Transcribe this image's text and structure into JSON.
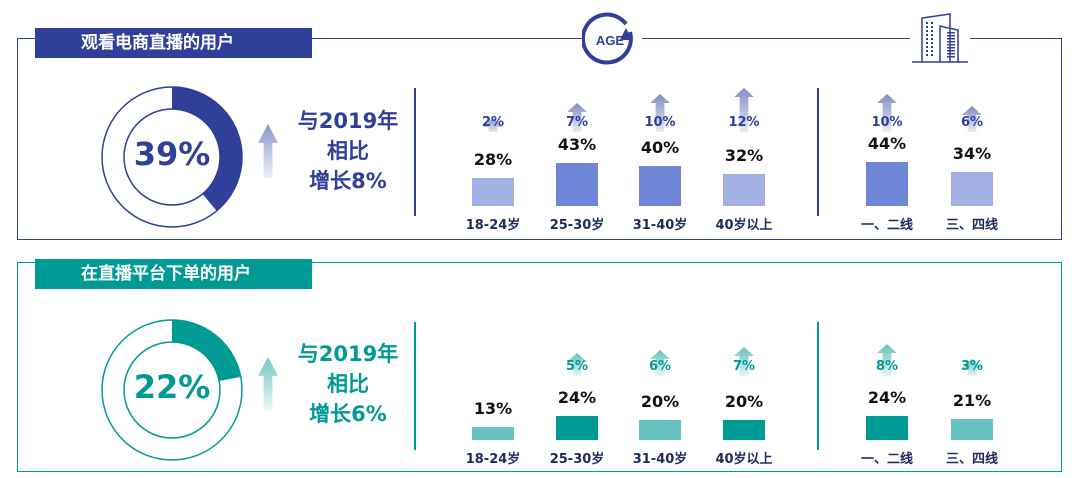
{
  "colors": {
    "navy": "#2f3f9a",
    "navy_dark_bar": "#6f86d6",
    "navy_light_bar": "#a3b0e4",
    "teal": "#009a95",
    "teal_dark_bar": "#009a95",
    "teal_light_bar": "#66c2c0"
  },
  "header_icons": {
    "age": "AGE",
    "city": "building-icon"
  },
  "chart_data": [
    {
      "type": "bar",
      "title": "观看电商直播的用户",
      "donut_value": 39,
      "donut_label": "39%",
      "compare": [
        "与2019年",
        "相比",
        "增长8%"
      ],
      "categories": [
        "18-24岁",
        "25-30岁",
        "31-40岁",
        "40岁以上",
        "一、二线",
        "三、四线"
      ],
      "values": [
        28,
        43,
        40,
        32,
        44,
        34
      ],
      "value_labels": [
        "28%",
        "43%",
        "40%",
        "32%",
        "44%",
        "34%"
      ],
      "growth": [
        2,
        7,
        10,
        12,
        10,
        6
      ],
      "growth_labels": [
        "2%",
        "7%",
        "10%",
        "12%",
        "10%",
        "6%"
      ],
      "highlight": [
        false,
        true,
        true,
        false,
        true,
        false
      ]
    },
    {
      "type": "bar",
      "title": "在直播平台下单的用户",
      "donut_value": 22,
      "donut_label": "22%",
      "compare": [
        "与2019年",
        "相比",
        "增长6%"
      ],
      "categories": [
        "18-24岁",
        "25-30岁",
        "31-40岁",
        "40岁以上",
        "一、二线",
        "三、四线"
      ],
      "values": [
        13,
        24,
        20,
        20,
        24,
        21
      ],
      "value_labels": [
        "13%",
        "24%",
        "20%",
        "20%",
        "24%",
        "21%"
      ],
      "growth": [
        null,
        5,
        6,
        7,
        8,
        3
      ],
      "growth_labels": [
        null,
        "5%",
        "6%",
        "7%",
        "8%",
        "3%"
      ],
      "highlight": [
        false,
        true,
        false,
        true,
        true,
        false
      ]
    }
  ]
}
